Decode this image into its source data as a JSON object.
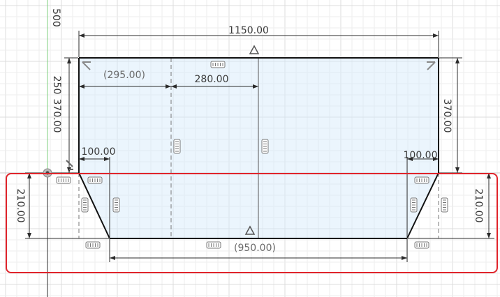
{
  "colors": {
    "selection_outline": "#e0242b",
    "profile_fill": "#d2e8fa",
    "axis_green": "#7ccf7c",
    "edge": "#111111",
    "dimension": "#2b2b2b"
  },
  "axis_label": "500",
  "dimensions": {
    "overall_width": "1150.00",
    "left_ref_width": "(295.00)",
    "inner_width": "280.00",
    "left_total_height": "250",
    "left_height": "370.00",
    "right_height": "370.00",
    "left_chamfer": "100.00",
    "right_chamfer": "100.00",
    "left_lower_height": "210.00",
    "right_lower_height": "210.00",
    "bottom_ref_width": "(950.00)"
  },
  "icons": {
    "origin": "origin-point-icon",
    "midpoint": "midpoint-triangle-icon",
    "coincident": "coincident-corner-icon",
    "horizontal": "horizontal-constraint-icon",
    "vertical": "vertical-constraint-icon"
  }
}
